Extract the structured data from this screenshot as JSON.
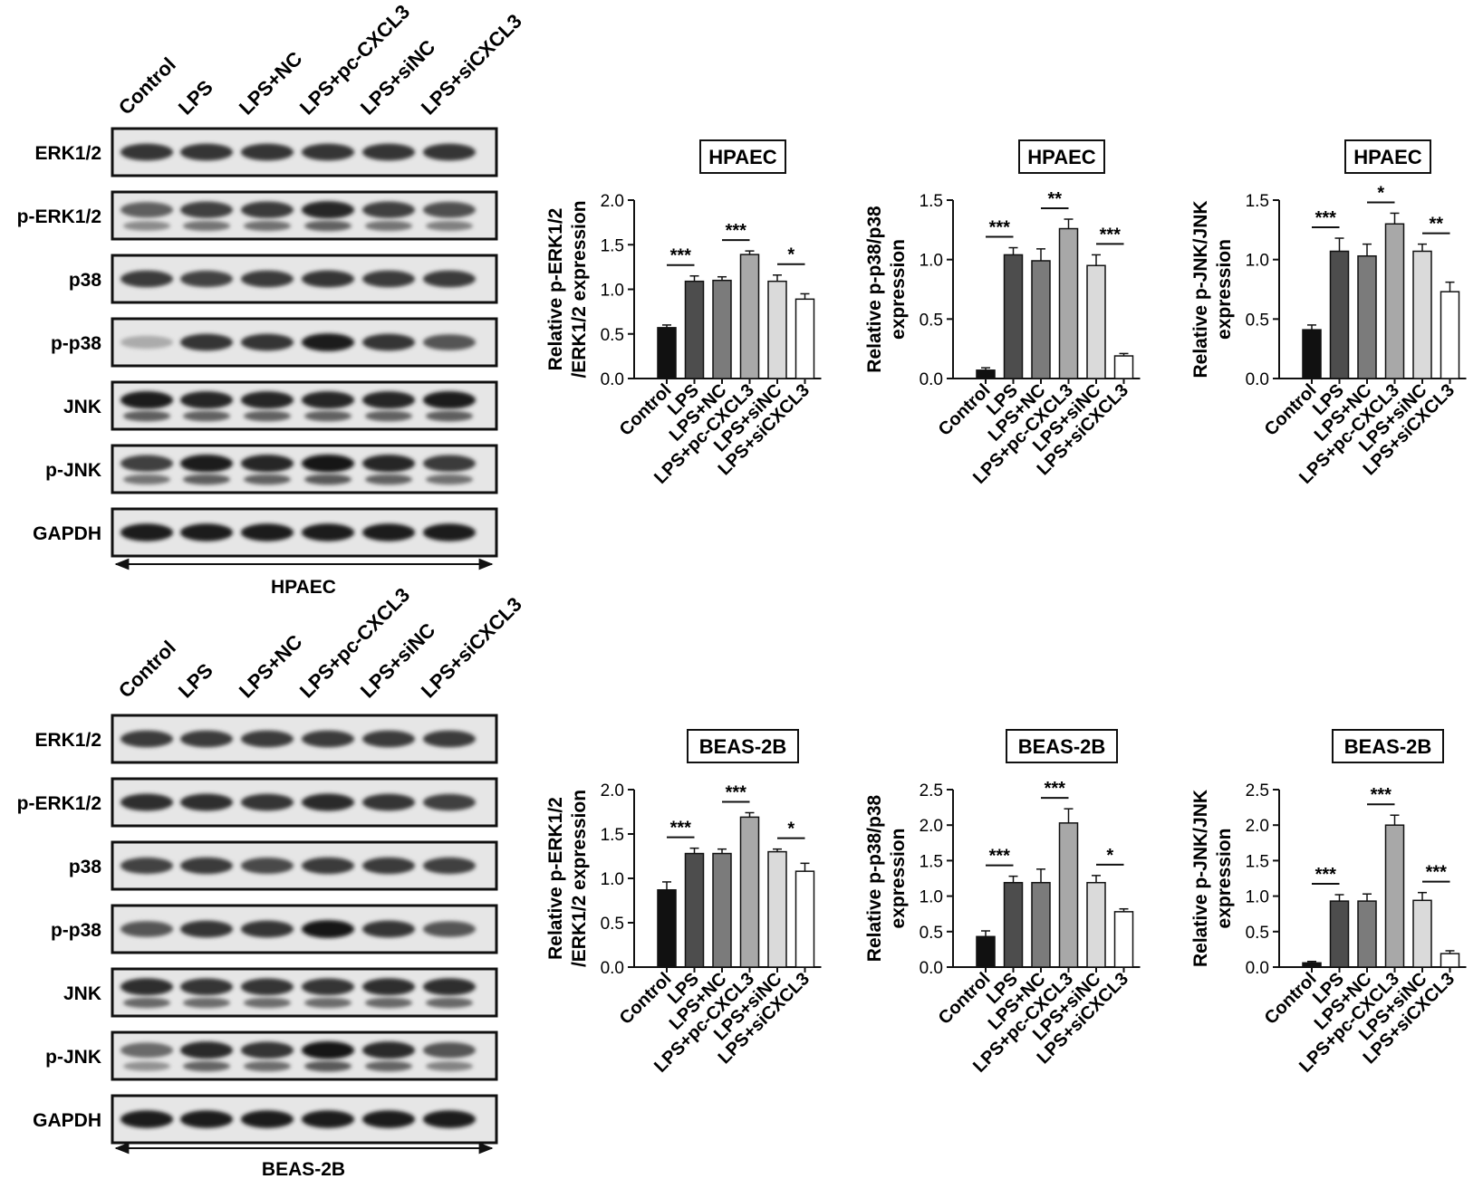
{
  "groups": [
    "Control",
    "LPS",
    "LPS+NC",
    "LPS+pc-CXCL3",
    "LPS+siNC",
    "LPS+siCXCL3"
  ],
  "bar_colors": [
    "#111111",
    "#4d4d4d",
    "#7b7b7b",
    "#a8a8a8",
    "#dadada",
    "#ffffff"
  ],
  "blots": [
    {
      "cell_line": "HPAEC",
      "rows": [
        {
          "label": "ERK1/2",
          "intensity": [
            0.85,
            0.85,
            0.85,
            0.85,
            0.85,
            0.85
          ],
          "double": false
        },
        {
          "label": "p-ERK1/2",
          "intensity": [
            0.65,
            0.8,
            0.82,
            0.92,
            0.8,
            0.72
          ],
          "double": true
        },
        {
          "label": "p38",
          "intensity": [
            0.82,
            0.78,
            0.82,
            0.85,
            0.82,
            0.82
          ],
          "double": false
        },
        {
          "label": "p-p38",
          "intensity": [
            0.3,
            0.85,
            0.85,
            0.97,
            0.85,
            0.7
          ],
          "double": false
        },
        {
          "label": "JNK",
          "intensity": [
            0.95,
            0.92,
            0.92,
            0.92,
            0.92,
            0.95
          ],
          "double": true
        },
        {
          "label": "p-JNK",
          "intensity": [
            0.8,
            0.95,
            0.92,
            0.98,
            0.92,
            0.82
          ],
          "double": true
        },
        {
          "label": "GAPDH",
          "intensity": [
            0.95,
            0.95,
            0.95,
            0.95,
            0.95,
            0.95
          ],
          "double": false
        }
      ]
    },
    {
      "cell_line": "BEAS-2B",
      "rows": [
        {
          "label": "ERK1/2",
          "intensity": [
            0.82,
            0.82,
            0.82,
            0.82,
            0.82,
            0.82
          ],
          "double": false
        },
        {
          "label": "p-ERK1/2",
          "intensity": [
            0.88,
            0.88,
            0.85,
            0.9,
            0.85,
            0.8
          ],
          "double": false
        },
        {
          "label": "p38",
          "intensity": [
            0.78,
            0.82,
            0.75,
            0.82,
            0.82,
            0.8
          ],
          "double": false
        },
        {
          "label": "p-p38",
          "intensity": [
            0.7,
            0.85,
            0.85,
            0.98,
            0.85,
            0.7
          ],
          "double": false
        },
        {
          "label": "JNK",
          "intensity": [
            0.88,
            0.85,
            0.85,
            0.85,
            0.88,
            0.88
          ],
          "double": true
        },
        {
          "label": "p-JNK",
          "intensity": [
            0.6,
            0.9,
            0.85,
            0.98,
            0.9,
            0.7
          ],
          "double": true
        },
        {
          "label": "GAPDH",
          "intensity": [
            0.95,
            0.95,
            0.95,
            0.95,
            0.95,
            0.95
          ],
          "double": false
        }
      ]
    }
  ],
  "chart_data": [
    {
      "type": "bar",
      "title": "HPAEC",
      "ylabel": [
        "Relative p-ERK1/2",
        "/ERK1/2 expression"
      ],
      "categories": [
        "Control",
        "LPS",
        "LPS+NC",
        "LPS+pc-CXCL3",
        "LPS+siNC",
        "LPS+siCXCL3"
      ],
      "values": [
        0.57,
        1.09,
        1.1,
        1.39,
        1.09,
        0.89
      ],
      "errors": [
        0.03,
        0.06,
        0.04,
        0.04,
        0.07,
        0.06
      ],
      "ylim": [
        0,
        2.0
      ],
      "yticks": [
        "0.0",
        "0.5",
        "1.0",
        "1.5",
        "2.0"
      ],
      "significance": [
        {
          "from": 0,
          "to": 1,
          "label": "***"
        },
        {
          "from": 2,
          "to": 3,
          "label": "***"
        },
        {
          "from": 4,
          "to": 5,
          "label": "*"
        }
      ]
    },
    {
      "type": "bar",
      "title": "HPAEC",
      "ylabel": [
        "Relative p-p38/p38",
        "expression"
      ],
      "categories": [
        "Control",
        "LPS",
        "LPS+NC",
        "LPS+pc-CXCL3",
        "LPS+siNC",
        "LPS+siCXCL3"
      ],
      "values": [
        0.07,
        1.04,
        0.99,
        1.26,
        0.95,
        0.19
      ],
      "errors": [
        0.02,
        0.06,
        0.1,
        0.08,
        0.09,
        0.02
      ],
      "ylim": [
        0,
        1.5
      ],
      "yticks": [
        "0.0",
        "0.5",
        "1.0",
        "1.5"
      ],
      "significance": [
        {
          "from": 0,
          "to": 1,
          "label": "***"
        },
        {
          "from": 2,
          "to": 3,
          "label": "**"
        },
        {
          "from": 4,
          "to": 5,
          "label": "***"
        }
      ]
    },
    {
      "type": "bar",
      "title": "HPAEC",
      "ylabel": [
        "Relative p-JNK/JNK",
        "expression"
      ],
      "categories": [
        "Control",
        "LPS",
        "LPS+NC",
        "LPS+pc-CXCL3",
        "LPS+siNC",
        "LPS+siCXCL3"
      ],
      "values": [
        0.41,
        1.07,
        1.03,
        1.3,
        1.07,
        0.73
      ],
      "errors": [
        0.04,
        0.11,
        0.1,
        0.09,
        0.06,
        0.08
      ],
      "ylim": [
        0,
        1.5
      ],
      "yticks": [
        "0.0",
        "0.5",
        "1.0",
        "1.5"
      ],
      "significance": [
        {
          "from": 0,
          "to": 1,
          "label": "***"
        },
        {
          "from": 2,
          "to": 3,
          "label": "*"
        },
        {
          "from": 4,
          "to": 5,
          "label": "**"
        }
      ]
    },
    {
      "type": "bar",
      "title": "BEAS-2B",
      "ylabel": [
        "Relative p-ERK1/2",
        "/ERK1/2 expression"
      ],
      "categories": [
        "Control",
        "LPS",
        "LPS+NC",
        "LPS+pc-CXCL3",
        "LPS+siNC",
        "LPS+siCXCL3"
      ],
      "values": [
        0.87,
        1.28,
        1.28,
        1.69,
        1.3,
        1.08
      ],
      "errors": [
        0.09,
        0.06,
        0.05,
        0.05,
        0.03,
        0.09
      ],
      "ylim": [
        0,
        2.0
      ],
      "yticks": [
        "0.0",
        "0.5",
        "1.0",
        "1.5",
        "2.0"
      ],
      "significance": [
        {
          "from": 0,
          "to": 1,
          "label": "***"
        },
        {
          "from": 2,
          "to": 3,
          "label": "***"
        },
        {
          "from": 4,
          "to": 5,
          "label": "*"
        }
      ]
    },
    {
      "type": "bar",
      "title": "BEAS-2B",
      "ylabel": [
        "Relative p-p38/p38",
        "expression"
      ],
      "categories": [
        "Control",
        "LPS",
        "LPS+NC",
        "LPS+pc-CXCL3",
        "LPS+siNC",
        "LPS+siCXCL3"
      ],
      "values": [
        0.43,
        1.19,
        1.19,
        2.03,
        1.19,
        0.78
      ],
      "errors": [
        0.08,
        0.09,
        0.19,
        0.2,
        0.1,
        0.04
      ],
      "ylim": [
        0,
        2.5
      ],
      "yticks": [
        "0.0",
        "0.5",
        "1.0",
        "1.5",
        "2.0",
        "2.5"
      ],
      "significance": [
        {
          "from": 0,
          "to": 1,
          "label": "***"
        },
        {
          "from": 2,
          "to": 3,
          "label": "***"
        },
        {
          "from": 4,
          "to": 5,
          "label": "*"
        }
      ]
    },
    {
      "type": "bar",
      "title": "BEAS-2B",
      "ylabel": [
        "Relative p-JNK/JNK",
        "expression"
      ],
      "categories": [
        "Control",
        "LPS",
        "LPS+NC",
        "LPS+pc-CXCL3",
        "LPS+siNC",
        "LPS+siCXCL3"
      ],
      "values": [
        0.06,
        0.93,
        0.93,
        2.0,
        0.94,
        0.19
      ],
      "errors": [
        0.02,
        0.09,
        0.1,
        0.14,
        0.11,
        0.04
      ],
      "ylim": [
        0,
        2.5
      ],
      "yticks": [
        "0.0",
        "0.5",
        "1.0",
        "1.5",
        "2.0",
        "2.5"
      ],
      "significance": [
        {
          "from": 0,
          "to": 1,
          "label": "***"
        },
        {
          "from": 2,
          "to": 3,
          "label": "***"
        },
        {
          "from": 4,
          "to": 5,
          "label": "***"
        }
      ]
    }
  ]
}
